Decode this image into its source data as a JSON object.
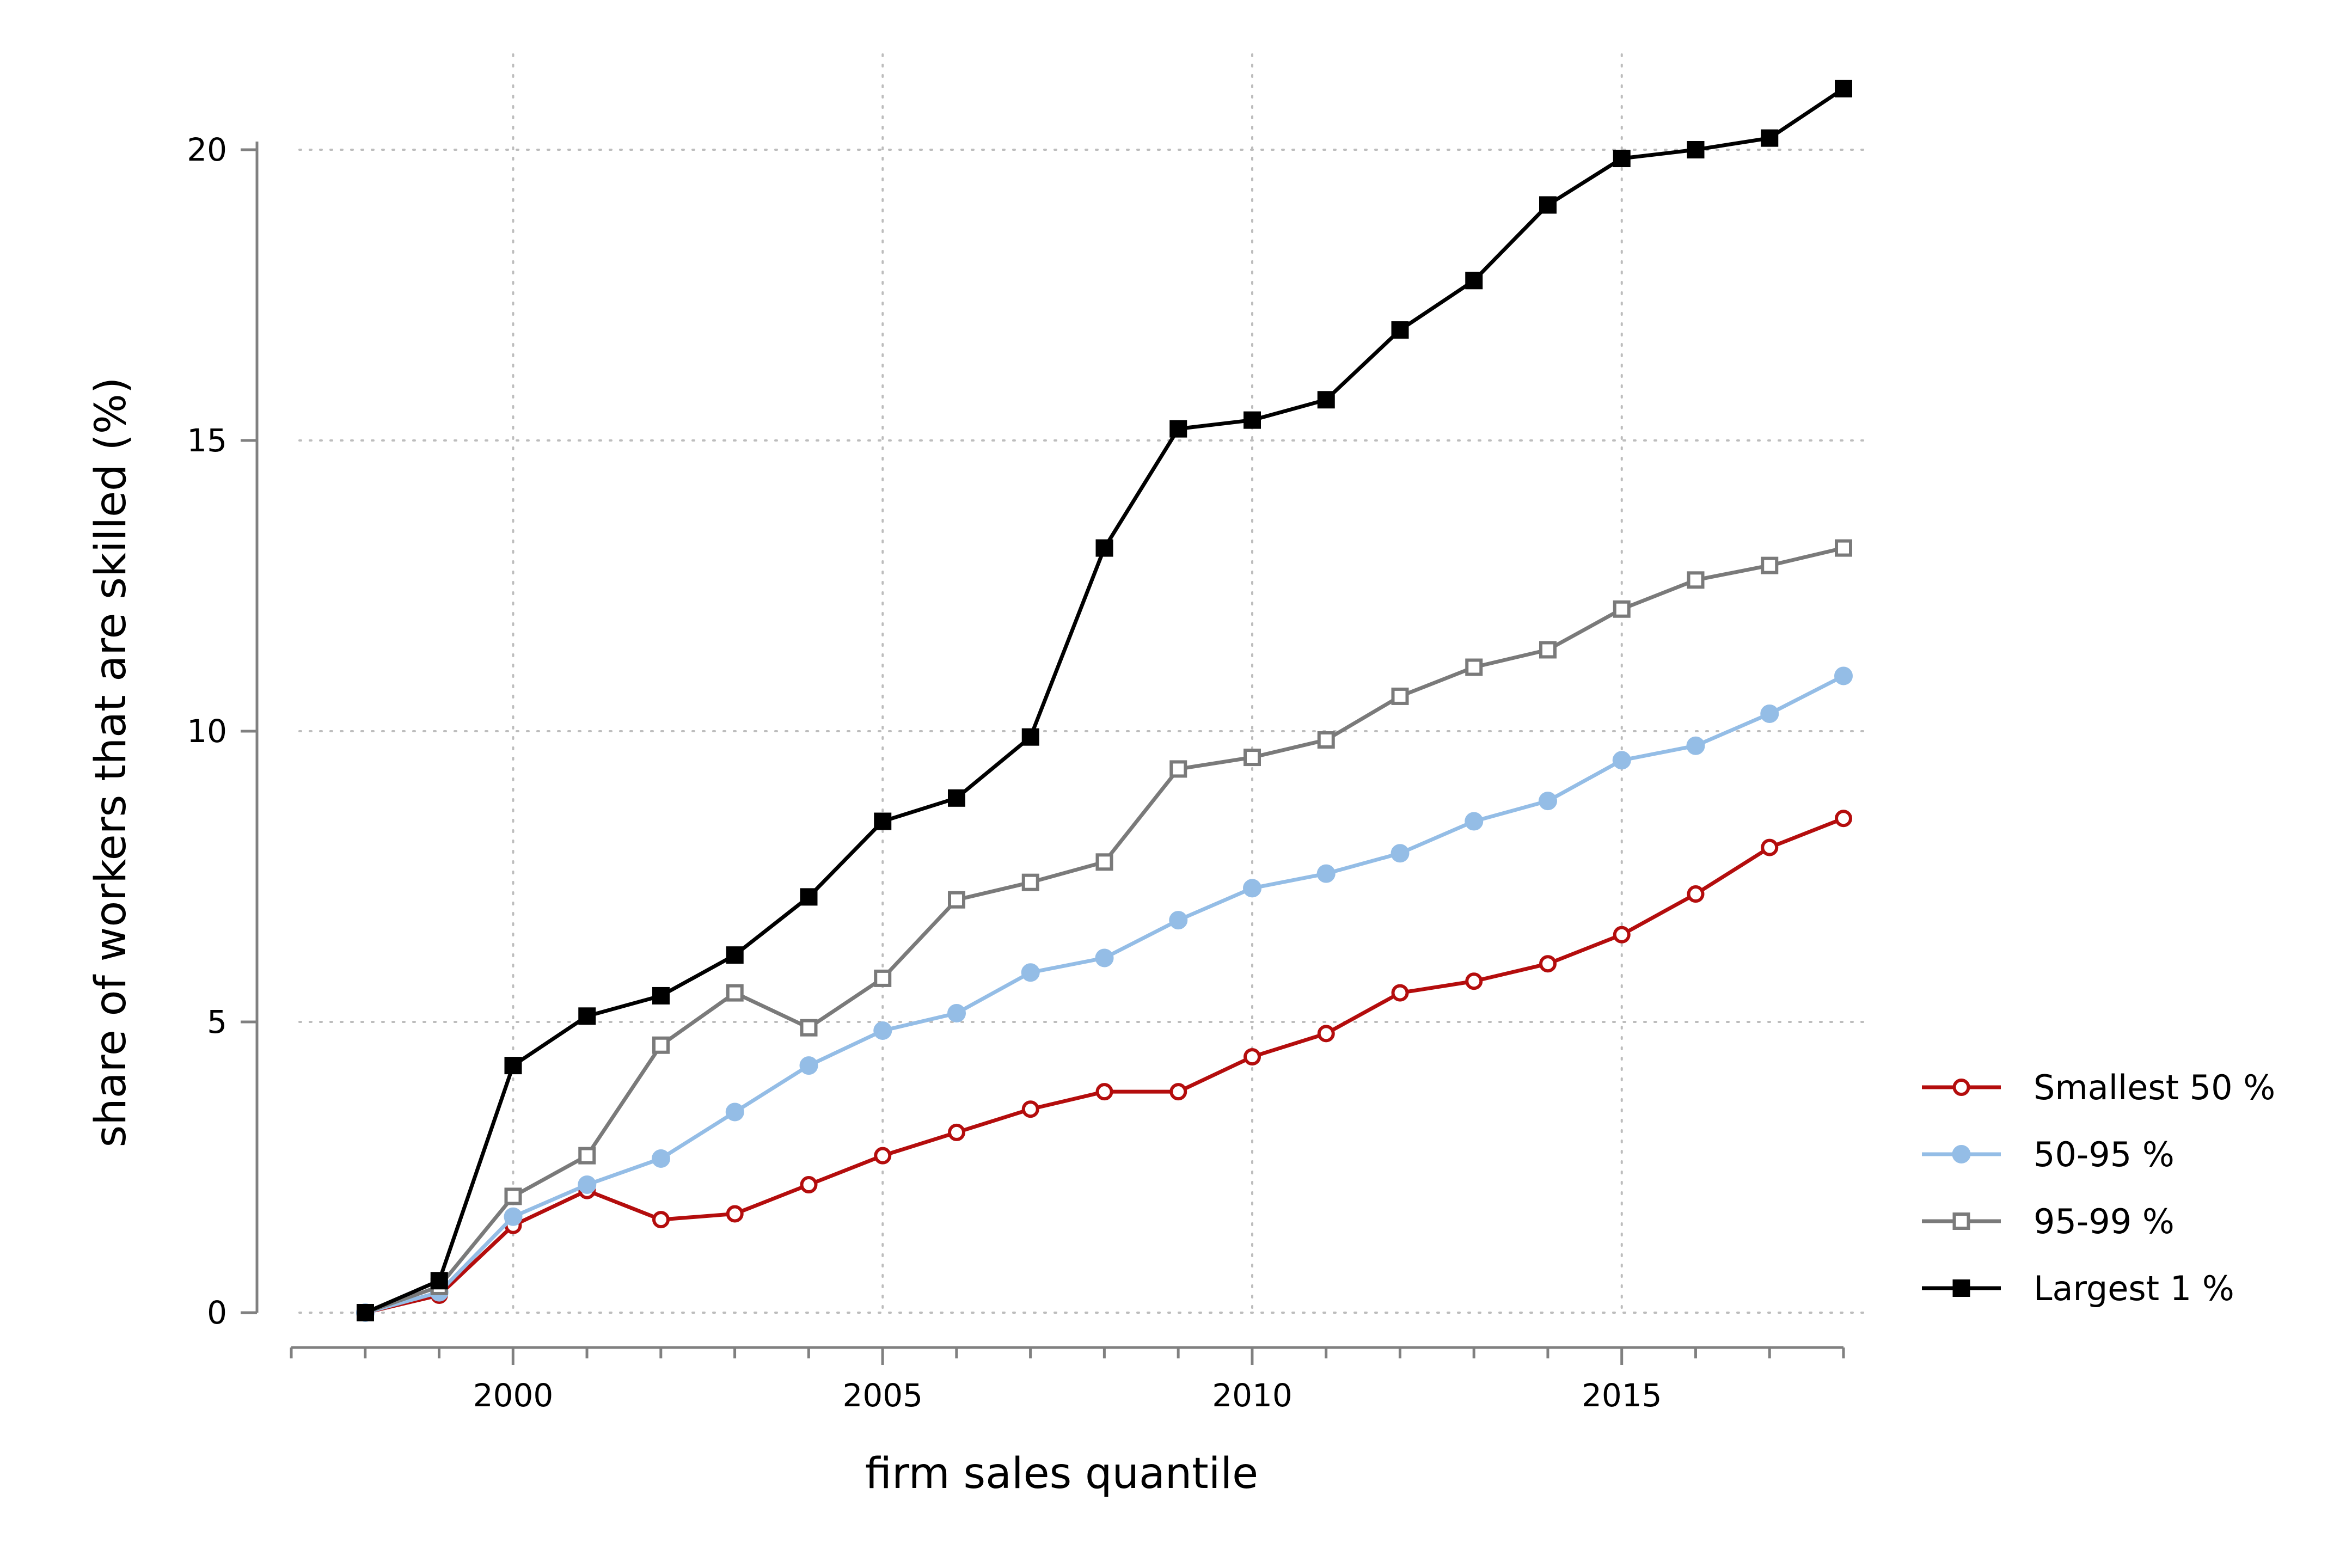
{
  "chart_data": {
    "type": "line",
    "title": "",
    "xlabel": "firm sales quantile",
    "ylabel": "share of workers that are skilled (%)",
    "x": [
      1998,
      1999,
      2000,
      2001,
      2002,
      2003,
      2004,
      2005,
      2006,
      2007,
      2008,
      2009,
      2010,
      2011,
      2012,
      2013,
      2014,
      2015,
      2016,
      2017,
      2018
    ],
    "xlim": [
      1997,
      2018
    ],
    "ylim": [
      -0.6,
      21.5
    ],
    "x_ticks": [
      2000,
      2005,
      2010,
      2015
    ],
    "x_tick_labels": [
      "2000",
      "2005",
      "2010",
      "2015"
    ],
    "y_ticks": [
      0,
      5,
      10,
      15,
      20
    ],
    "y_tick_labels": [
      "0",
      "5",
      "10",
      "15",
      "20"
    ],
    "grid": true,
    "legend_position": "right",
    "series": [
      {
        "name": "Smallest 50 %",
        "color": "#b40d0d",
        "marker": "circle-open",
        "values": [
          0,
          0.3,
          1.5,
          2.1,
          1.6,
          1.7,
          2.2,
          2.7,
          3.1,
          3.5,
          3.8,
          3.8,
          4.4,
          4.8,
          5.5,
          5.7,
          6.0,
          6.5,
          7.2,
          8.0,
          8.5
        ]
      },
      {
        "name": "50-95 %",
        "color": "#94bde6",
        "marker": "circle-filled",
        "values": [
          0,
          0.35,
          1.65,
          2.2,
          2.65,
          3.45,
          4.25,
          4.85,
          5.15,
          5.85,
          6.1,
          6.75,
          7.3,
          7.55,
          7.9,
          8.45,
          8.8,
          9.5,
          9.75,
          10.3,
          10.95
        ]
      },
      {
        "name": "95-99 %",
        "color": "#7a7a7a",
        "marker": "square-open",
        "values": [
          0,
          0.45,
          2.0,
          2.7,
          4.6,
          5.5,
          4.9,
          5.75,
          7.1,
          7.4,
          7.75,
          9.35,
          9.55,
          9.85,
          10.6,
          11.1,
          11.4,
          12.1,
          12.6,
          12.85,
          13.15
        ]
      },
      {
        "name": "Largest 1 %",
        "color": "#000000",
        "marker": "square-filled",
        "values": [
          0,
          0.55,
          4.25,
          5.1,
          5.45,
          6.15,
          7.15,
          8.45,
          8.85,
          9.9,
          13.15,
          15.2,
          15.35,
          15.7,
          16.9,
          17.75,
          19.05,
          19.85,
          20.0,
          20.2,
          21.05
        ]
      }
    ]
  }
}
